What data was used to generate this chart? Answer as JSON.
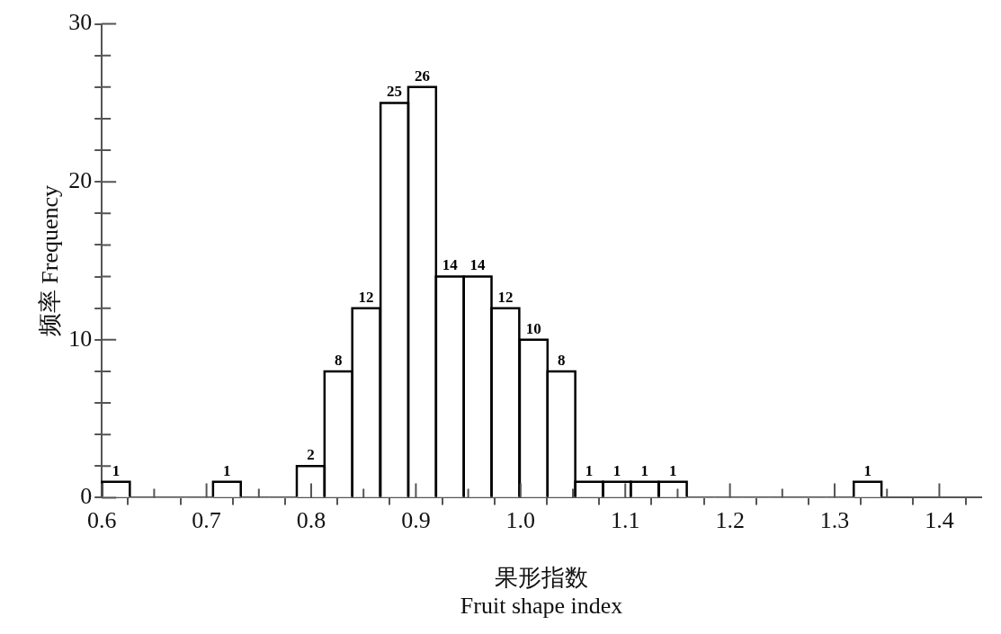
{
  "chart_data": {
    "type": "histogram",
    "bins": [
      0.6,
      0.627,
      0.653,
      0.68,
      0.706,
      0.733,
      0.76,
      0.786,
      0.813,
      0.839,
      0.866,
      0.893,
      0.919,
      0.946,
      0.972,
      0.999,
      1.026,
      1.052,
      1.079,
      1.105,
      1.132,
      1.159,
      1.185,
      1.212,
      1.238,
      1.265,
      1.292,
      1.318,
      1.345
    ],
    "values": [
      1,
      0,
      0,
      0,
      1,
      0,
      0,
      2,
      8,
      12,
      25,
      26,
      14,
      14,
      12,
      10,
      8,
      1,
      1,
      1,
      1,
      0,
      0,
      0,
      0,
      0,
      0,
      1
    ],
    "value_labels": [
      "1",
      null,
      null,
      null,
      "1",
      null,
      null,
      "2",
      "8",
      "12",
      "25",
      "26",
      "14",
      "14",
      "12",
      "10",
      "8",
      "1",
      "1",
      "1",
      "1",
      null,
      null,
      null,
      null,
      null,
      null,
      "1"
    ],
    "color": "#ffffff",
    "xlabel": "果形指数\nFruit shape index",
    "ylabel": "频率 Frequency",
    "xlim": [
      0.6,
      1.44
    ],
    "xticks": [
      0.6,
      {
        "value": 0.65,
        "label": null
      },
      0.7,
      {
        "value": 0.75,
        "label": null
      },
      0.8,
      {
        "value": 0.85,
        "label": null
      },
      0.9,
      {
        "value": 0.95,
        "label": null
      },
      {
        "value": 1.0,
        "label": "1.0"
      },
      {
        "value": 1.05,
        "label": null
      },
      1.1,
      {
        "value": 1.15,
        "label": null
      },
      1.2,
      {
        "value": 1.25,
        "label": null
      },
      1.3,
      {
        "value": 1.35,
        "label": null
      },
      1.4
    ],
    "ylim": [
      0,
      30
    ],
    "yticks": [
      0,
      {
        "value": 2,
        "label": null
      },
      {
        "value": 4,
        "label": null
      },
      {
        "value": 6,
        "label": null
      },
      {
        "value": 8,
        "label": null
      },
      10,
      {
        "value": 12,
        "label": null
      },
      {
        "value": 14,
        "label": null
      },
      {
        "value": 16,
        "label": null
      },
      {
        "value": 18,
        "label": null
      },
      20,
      {
        "value": 22,
        "label": null
      },
      {
        "value": 24,
        "label": null
      },
      {
        "value": 26,
        "label": null
      },
      {
        "value": 28,
        "label": null
      },
      30
    ],
    "grid": false,
    "legend": false
  }
}
